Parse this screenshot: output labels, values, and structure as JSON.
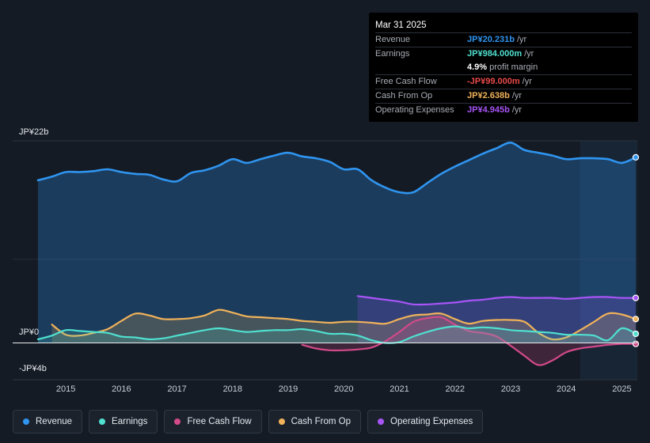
{
  "tooltip": {
    "date": "Mar 31 2025",
    "rows": [
      {
        "label": "Revenue",
        "value": "JP¥20.231b",
        "unit": "/yr",
        "color": "#2f95f0"
      },
      {
        "label": "Earnings",
        "value": "JP¥984.000m",
        "unit": "/yr",
        "color": "#4fe0cf"
      },
      {
        "label": "",
        "value": "4.9%",
        "unit": "profit margin",
        "color": "#ffffff"
      },
      {
        "label": "Free Cash Flow",
        "value": "-JP¥99.000m",
        "unit": "/yr",
        "color": "#ea4a4a"
      },
      {
        "label": "Cash From Op",
        "value": "JP¥2.638b",
        "unit": "/yr",
        "color": "#f0b25a"
      },
      {
        "label": "Operating Expenses",
        "value": "JP¥4.945b",
        "unit": "/yr",
        "color": "#a855f7"
      }
    ]
  },
  "axis": {
    "top_label": "JP¥22b",
    "zero_label": "JP¥0",
    "bottom_label": "-JP¥4b"
  },
  "legend": [
    {
      "label": "Revenue",
      "color": "#2f95f0"
    },
    {
      "label": "Earnings",
      "color": "#4fe0cf"
    },
    {
      "label": "Free Cash Flow",
      "color": "#d24a8a"
    },
    {
      "label": "Cash From Op",
      "color": "#f0b25a"
    },
    {
      "label": "Operating Expenses",
      "color": "#a855f7"
    }
  ],
  "chart_data": {
    "type": "area",
    "title": "",
    "xlabel": "",
    "ylabel": "",
    "x_ticks": [
      "2015",
      "2016",
      "2017",
      "2018",
      "2019",
      "2020",
      "2021",
      "2022",
      "2023",
      "2024",
      "2025"
    ],
    "xlim": [
      2014.5,
      2025.25
    ],
    "ylim": [
      -4,
      22
    ],
    "unit": "JP¥ billions",
    "highlight_start": 2024.25,
    "series": [
      {
        "name": "Revenue",
        "color": "#2f95f0",
        "fill": true,
        "x": [
          2014.5,
          2014.75,
          2015.0,
          2015.25,
          2015.5,
          2015.75,
          2016.0,
          2016.25,
          2016.5,
          2016.75,
          2017.0,
          2017.25,
          2017.5,
          2017.75,
          2018.0,
          2018.25,
          2018.5,
          2018.75,
          2019.0,
          2019.25,
          2019.5,
          2019.75,
          2020.0,
          2020.25,
          2020.5,
          2020.75,
          2021.0,
          2021.25,
          2021.5,
          2021.75,
          2022.0,
          2022.25,
          2022.5,
          2022.75,
          2023.0,
          2023.25,
          2023.5,
          2023.75,
          2024.0,
          2024.25,
          2024.5,
          2024.75,
          2025.0,
          2025.25
        ],
        "values": [
          17.7,
          18.1,
          18.6,
          18.6,
          18.7,
          18.9,
          18.6,
          18.4,
          18.3,
          17.8,
          17.6,
          18.5,
          18.8,
          19.3,
          20.0,
          19.6,
          20.0,
          20.4,
          20.7,
          20.3,
          20.1,
          19.7,
          18.9,
          18.9,
          17.7,
          16.9,
          16.4,
          16.4,
          17.4,
          18.4,
          19.2,
          19.9,
          20.6,
          21.2,
          21.8,
          21.0,
          20.7,
          20.4,
          20.0,
          20.1,
          20.1,
          20.0,
          19.6,
          20.2
        ]
      },
      {
        "name": "Earnings",
        "color": "#4fe0cf",
        "fill": true,
        "x": [
          2014.5,
          2014.75,
          2015.0,
          2015.25,
          2015.5,
          2015.75,
          2016.0,
          2016.25,
          2016.5,
          2016.75,
          2017.0,
          2017.25,
          2017.5,
          2017.75,
          2018.0,
          2018.25,
          2018.5,
          2018.75,
          2019.0,
          2019.25,
          2019.5,
          2019.75,
          2020.0,
          2020.25,
          2020.5,
          2020.75,
          2021.0,
          2021.25,
          2021.5,
          2021.75,
          2022.0,
          2022.25,
          2022.5,
          2022.75,
          2023.0,
          2023.25,
          2023.5,
          2023.75,
          2024.0,
          2024.25,
          2024.5,
          2024.75,
          2025.0,
          2025.25
        ],
        "values": [
          0.4,
          0.8,
          1.4,
          1.3,
          1.2,
          1.1,
          0.7,
          0.6,
          0.4,
          0.5,
          0.8,
          1.1,
          1.4,
          1.6,
          1.4,
          1.2,
          1.3,
          1.4,
          1.4,
          1.5,
          1.3,
          1.0,
          1.0,
          0.8,
          0.3,
          0.0,
          0.1,
          0.7,
          1.2,
          1.6,
          1.8,
          1.6,
          1.7,
          1.6,
          1.4,
          1.3,
          1.2,
          1.1,
          0.9,
          0.9,
          0.8,
          0.3,
          1.6,
          1.0
        ]
      },
      {
        "name": "Free Cash Flow",
        "color": "#d24a8a",
        "fill": true,
        "x": [
          2019.25,
          2019.5,
          2019.75,
          2020.0,
          2020.25,
          2020.5,
          2020.75,
          2021.0,
          2021.25,
          2021.5,
          2021.75,
          2022.0,
          2022.25,
          2022.5,
          2022.75,
          2023.0,
          2023.25,
          2023.5,
          2023.75,
          2024.0,
          2024.25,
          2024.5,
          2024.75,
          2025.0,
          2025.25
        ],
        "values": [
          -0.2,
          -0.6,
          -0.8,
          -0.8,
          -0.7,
          -0.5,
          0.2,
          1.2,
          2.3,
          2.7,
          2.8,
          2.0,
          1.3,
          1.1,
          0.7,
          -0.3,
          -1.4,
          -2.4,
          -1.9,
          -1.0,
          -0.6,
          -0.4,
          -0.2,
          -0.1,
          -0.1
        ]
      },
      {
        "name": "Cash From Op",
        "color": "#f0b25a",
        "fill": true,
        "x": [
          2014.75,
          2015.0,
          2015.25,
          2015.5,
          2015.75,
          2016.0,
          2016.25,
          2016.5,
          2016.75,
          2017.0,
          2017.25,
          2017.5,
          2017.75,
          2018.0,
          2018.25,
          2018.5,
          2018.75,
          2019.0,
          2019.25,
          2019.5,
          2019.75,
          2020.0,
          2020.25,
          2020.5,
          2020.75,
          2021.0,
          2021.25,
          2021.5,
          2021.75,
          2022.0,
          2022.25,
          2022.5,
          2022.75,
          2023.0,
          2023.25,
          2023.5,
          2023.75,
          2024.0,
          2024.25,
          2024.5,
          2024.75,
          2025.0,
          2025.25
        ],
        "values": [
          2.0,
          0.9,
          0.8,
          1.1,
          1.5,
          2.4,
          3.2,
          3.0,
          2.6,
          2.6,
          2.7,
          3.0,
          3.6,
          3.3,
          2.9,
          2.8,
          2.7,
          2.6,
          2.4,
          2.3,
          2.2,
          2.3,
          2.3,
          2.2,
          2.1,
          2.6,
          3.0,
          3.1,
          3.2,
          2.6,
          2.1,
          2.4,
          2.5,
          2.5,
          2.3,
          1.1,
          0.4,
          0.6,
          1.4,
          2.3,
          3.2,
          3.1,
          2.6
        ]
      },
      {
        "name": "Operating Expenses",
        "color": "#a855f7",
        "fill": true,
        "x": [
          2020.25,
          2020.5,
          2020.75,
          2021.0,
          2021.25,
          2021.5,
          2021.75,
          2022.0,
          2022.25,
          2022.5,
          2022.75,
          2023.0,
          2023.25,
          2023.5,
          2023.75,
          2024.0,
          2024.25,
          2024.5,
          2024.75,
          2025.0,
          2025.25
        ],
        "values": [
          5.1,
          4.9,
          4.7,
          4.5,
          4.2,
          4.2,
          4.3,
          4.4,
          4.6,
          4.7,
          4.9,
          5.0,
          4.9,
          4.9,
          4.9,
          4.8,
          4.9,
          5.0,
          5.0,
          4.9,
          4.9
        ]
      }
    ]
  }
}
